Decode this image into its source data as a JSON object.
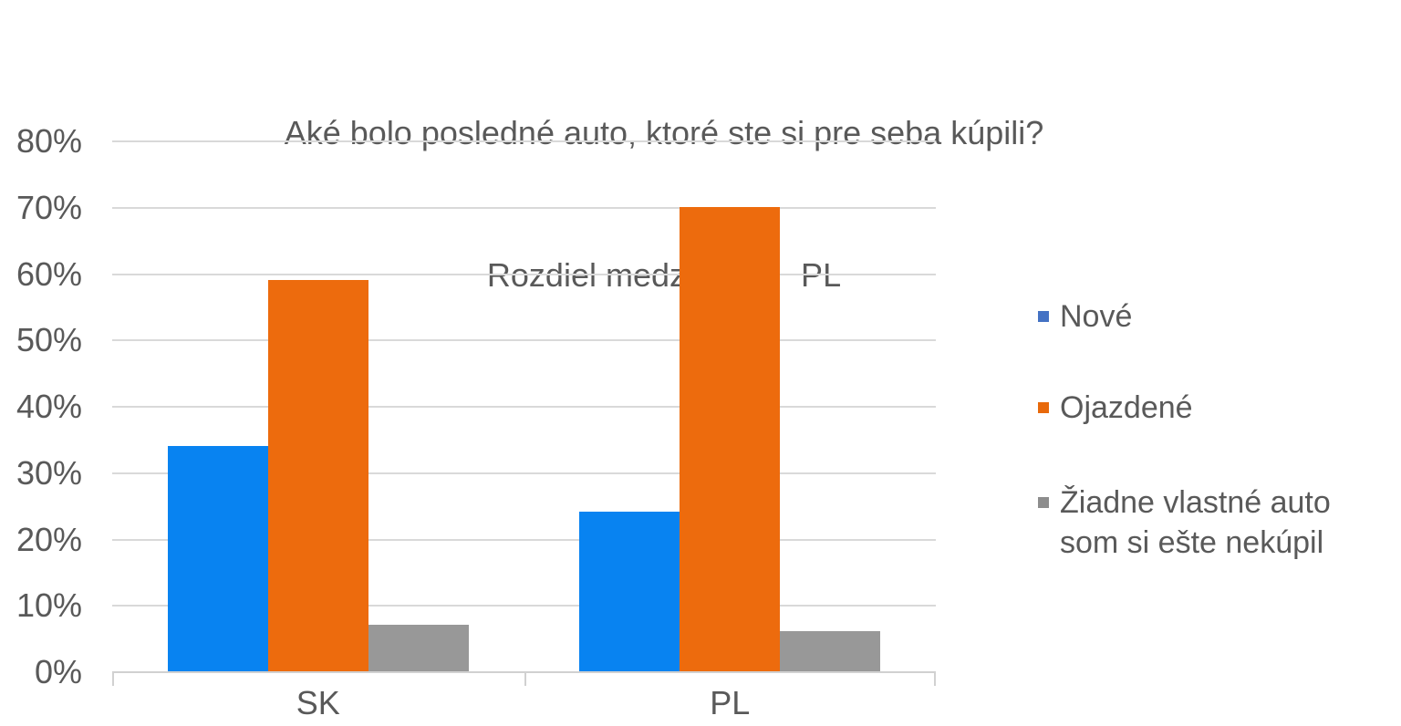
{
  "title": {
    "line1": "Aké bolo posledné auto, ktoré ste si pre seba kúpili?",
    "line2": "Rozdiel medzi SK a   PL"
  },
  "chart_data": {
    "type": "bar",
    "categories": [
      "SK",
      "PL"
    ],
    "series": [
      {
        "name": "Nové",
        "values": [
          34,
          24
        ],
        "bar_color": "#0883F1",
        "legend_color": "#4472C4"
      },
      {
        "name": "Ojazdené",
        "values": [
          59,
          70
        ],
        "bar_color": "#ED6B0D",
        "legend_color": "#E8690B"
      },
      {
        "name": "Žiadne vlastné auto som si ešte nekúpil",
        "values": [
          7,
          6
        ],
        "bar_color": "#989898",
        "legend_color": "#8D8D8D"
      }
    ],
    "title": "Aké bolo posledné auto, ktoré ste si pre seba kúpili? Rozdiel medzi SK a PL",
    "xlabel": "",
    "ylabel": "",
    "ylim": [
      0,
      80
    ],
    "ytick_step": 10,
    "ytick_suffix": "%",
    "grid": true,
    "legend_position": "right"
  },
  "colors": {
    "text": "#595959",
    "gridline": "#D9D9D9",
    "axis": "#D1D1D1"
  }
}
